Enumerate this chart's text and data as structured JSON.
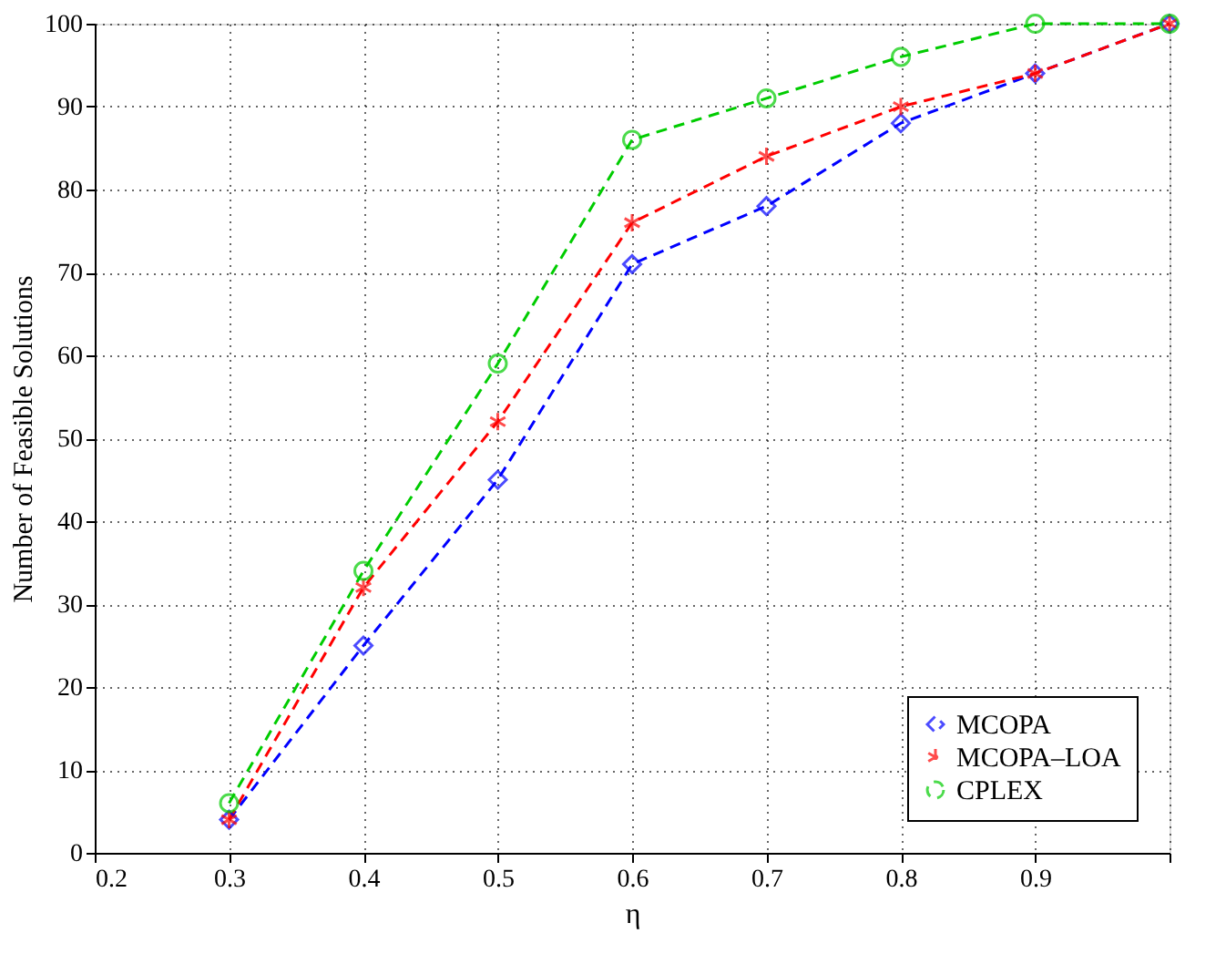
{
  "chart_data": {
    "type": "line",
    "xlabel": "η",
    "ylabel": "Number of Feasible Solutions",
    "x": [
      0.3,
      0.4,
      0.5,
      0.6,
      0.7,
      0.8,
      0.9,
      1.0
    ],
    "series": [
      {
        "name": "MCOPA",
        "color": "#0000ff",
        "marker": "diamond",
        "line_style": "dashed",
        "values": [
          4,
          25,
          45,
          71,
          78,
          88,
          94,
          100
        ]
      },
      {
        "name": "MCOPA–LOA",
        "color": "#ff0000",
        "marker": "cross",
        "line_style": "dashed",
        "values": [
          4,
          32,
          52,
          76,
          84,
          90,
          94,
          100
        ]
      },
      {
        "name": "CPLEX",
        "color": "#00cc00",
        "marker": "circle",
        "line_style": "dashed",
        "values": [
          6,
          34,
          59,
          86,
          91,
          96,
          100,
          100
        ]
      }
    ],
    "xlim": [
      0.2,
      1.0
    ],
    "xticks": [
      0.2,
      0.3,
      0.4,
      0.5,
      0.6,
      0.7,
      0.8,
      0.9,
      {
        "value": 1.0,
        "label": null
      }
    ],
    "ylim": [
      0,
      100
    ],
    "yticks": [
      0,
      10,
      20,
      30,
      40,
      50,
      60,
      70,
      80,
      90,
      100
    ],
    "grid": true,
    "legend": "bottom right"
  }
}
